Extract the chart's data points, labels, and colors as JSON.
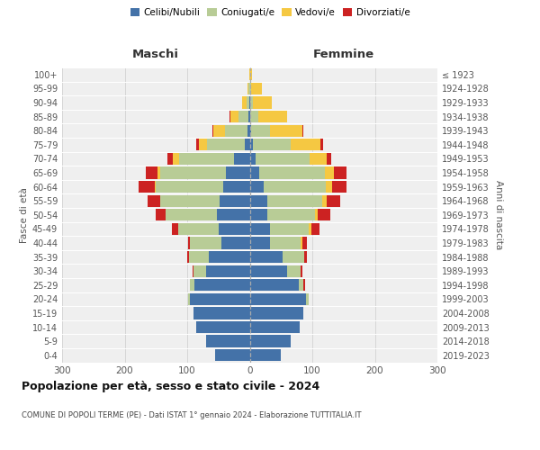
{
  "age_groups": [
    "0-4",
    "5-9",
    "10-14",
    "15-19",
    "20-24",
    "25-29",
    "30-34",
    "35-39",
    "40-44",
    "45-49",
    "50-54",
    "55-59",
    "60-64",
    "65-69",
    "70-74",
    "75-79",
    "80-84",
    "85-89",
    "90-94",
    "95-99",
    "100+"
  ],
  "birth_years": [
    "2019-2023",
    "2014-2018",
    "2009-2013",
    "2004-2008",
    "1999-2003",
    "1994-1998",
    "1989-1993",
    "1984-1988",
    "1979-1983",
    "1974-1978",
    "1969-1973",
    "1964-1968",
    "1959-1963",
    "1954-1958",
    "1949-1953",
    "1944-1948",
    "1939-1943",
    "1934-1938",
    "1929-1933",
    "1924-1928",
    "≤ 1923"
  ],
  "male": {
    "celibi": [
      55,
      70,
      85,
      90,
      95,
      88,
      70,
      65,
      45,
      50,
      52,
      48,
      42,
      38,
      25,
      8,
      4,
      2,
      1,
      0,
      0
    ],
    "coniugati": [
      0,
      0,
      0,
      0,
      3,
      8,
      20,
      32,
      50,
      65,
      82,
      95,
      108,
      105,
      88,
      60,
      36,
      16,
      4,
      2,
      0
    ],
    "vedovi": [
      0,
      0,
      0,
      0,
      0,
      0,
      0,
      0,
      0,
      0,
      0,
      0,
      2,
      5,
      10,
      14,
      18,
      13,
      7,
      2,
      1
    ],
    "divorziati": [
      0,
      0,
      0,
      0,
      0,
      0,
      2,
      3,
      4,
      9,
      16,
      20,
      25,
      18,
      8,
      4,
      2,
      1,
      0,
      0,
      0
    ]
  },
  "female": {
    "nubili": [
      50,
      65,
      80,
      85,
      90,
      78,
      60,
      52,
      32,
      32,
      28,
      28,
      22,
      15,
      10,
      5,
      2,
      1,
      1,
      0,
      0
    ],
    "coniugate": [
      0,
      0,
      0,
      0,
      4,
      8,
      22,
      35,
      50,
      62,
      76,
      88,
      100,
      105,
      85,
      60,
      30,
      12,
      4,
      2,
      0
    ],
    "vedove": [
      0,
      0,
      0,
      0,
      0,
      0,
      0,
      0,
      2,
      4,
      5,
      7,
      10,
      14,
      28,
      48,
      52,
      46,
      30,
      18,
      4
    ],
    "divorziate": [
      0,
      0,
      0,
      0,
      0,
      2,
      2,
      4,
      7,
      13,
      20,
      22,
      22,
      20,
      7,
      4,
      2,
      1,
      0,
      0,
      0
    ]
  },
  "colors": {
    "celibi": "#4472a8",
    "coniugati": "#b8cc96",
    "vedovi": "#f5c842",
    "divorziati": "#cc2222"
  },
  "xlim": 300,
  "title": "Popolazione per età, sesso e stato civile - 2024",
  "subtitle": "COMUNE DI POPOLI TERME (PE) - Dati ISTAT 1° gennaio 2024 - Elaborazione TUTTITALIA.IT",
  "ylabel_left": "Fasce di età",
  "ylabel_right": "Anni di nascita",
  "xlabel_left": "Maschi",
  "xlabel_right": "Femmine",
  "legend_labels": [
    "Celibi/Nubili",
    "Coniugati/e",
    "Vedovi/e",
    "Divorziati/e"
  ],
  "bg_color": "#efefef",
  "grid_color": "#ffffff",
  "axis_label_color": "#555555",
  "tick_color": "#555555"
}
